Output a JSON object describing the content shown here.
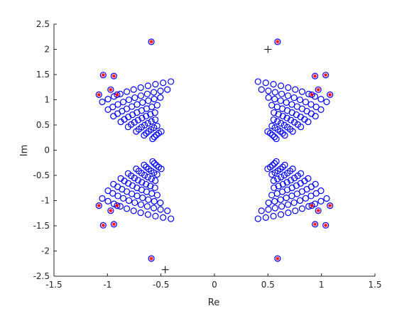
{
  "chart_data": {
    "type": "scatter",
    "title": "",
    "xlabel": "Re",
    "ylabel": "Im",
    "xlim": [
      -1.5,
      1.5
    ],
    "ylim": [
      -2.5,
      2.5
    ],
    "xticks": [
      "-1.5",
      "-1",
      "-0.5",
      "0",
      "0.5",
      "1",
      "1.5"
    ],
    "yticks": [
      "-2.5",
      "-2",
      "-1.5",
      "-1",
      "-0.5",
      "0",
      "0.5",
      "1",
      "1.5",
      "2",
      "2.5"
    ],
    "grid": false,
    "legend": "none",
    "colors": {
      "circles": "#0000ff",
      "stars": "#ff0000",
      "plus": "#000000",
      "axes": "#262626"
    },
    "arcs": [
      {
        "r": 0.62,
        "from": 0.37,
        "to": 0.64,
        "n": 5
      },
      {
        "r": 0.72,
        "from": 0.42,
        "to": 0.73,
        "n": 6
      },
      {
        "r": 0.82,
        "from": 0.47,
        "to": 0.83,
        "n": 7
      },
      {
        "r": 0.93,
        "from": 0.52,
        "to": 0.93,
        "n": 8
      },
      {
        "r": 1.04,
        "from": 0.57,
        "to": 1.03,
        "n": 9
      },
      {
        "r": 1.16,
        "from": 0.62,
        "to": 1.12,
        "n": 10
      },
      {
        "r": 1.28,
        "from": 0.68,
        "to": 1.22,
        "n": 11
      },
      {
        "r": 1.42,
        "from": 0.74,
        "to": 1.28,
        "n": 11
      }
    ],
    "star_points": [
      [
        0.59,
        2.15
      ],
      [
        0.94,
        1.47
      ],
      [
        1.04,
        1.49
      ],
      [
        0.97,
        1.2
      ],
      [
        1.08,
        1.1
      ],
      [
        0.91,
        1.1
      ]
    ],
    "plus_points": [
      [
        0.5,
        2.0
      ],
      [
        -0.46,
        -2.37
      ]
    ]
  }
}
